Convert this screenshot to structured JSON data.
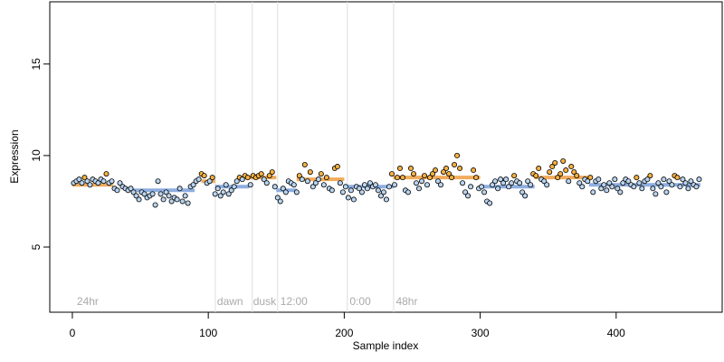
{
  "chart_data": {
    "type": "scatter",
    "x_label": "Sample index",
    "y_label": "Expression",
    "xlim": [
      -16.6,
      478
    ],
    "ylim": [
      1.44,
      18.4
    ],
    "xticks": [
      0,
      100,
      200,
      300,
      400
    ],
    "yticks": [
      5,
      10,
      15
    ],
    "vlines": [
      105.2,
      132.4,
      151,
      202.3,
      236.3
    ],
    "vline_color": "#dddddd",
    "annotations": [
      {
        "x": 3.3,
        "y": 2.03,
        "label": "24hr"
      },
      {
        "x": 106.5,
        "y": 2.03,
        "label": "dawn"
      },
      {
        "x": 133,
        "y": 2.03,
        "label": "dusk"
      },
      {
        "x": 153,
        "y": 2.03,
        "label": "12:00"
      },
      {
        "x": 204,
        "y": 2.03,
        "label": "0:00"
      },
      {
        "x": 238,
        "y": 2.03,
        "label": "48hr"
      }
    ],
    "segments": [
      {
        "x0": 0,
        "x1": 30,
        "y": 8.4,
        "color": "#f0ac5c"
      },
      {
        "x0": 45,
        "x1": 90,
        "y": 8.1,
        "color": "#8eaee0"
      },
      {
        "x0": 95,
        "x1": 105,
        "y": 8.6,
        "color": "#f0ac5c"
      },
      {
        "x0": 105,
        "x1": 130,
        "y": 8.3,
        "color": "#8eaee0"
      },
      {
        "x0": 130,
        "x1": 150,
        "y": 8.8,
        "color": "#f0ac5c"
      },
      {
        "x0": 150,
        "x1": 165,
        "y": 8.1,
        "color": "#8eaee0"
      },
      {
        "x0": 165,
        "x1": 200,
        "y": 8.7,
        "color": "#f0ac5c"
      },
      {
        "x0": 200,
        "x1": 236,
        "y": 8.3,
        "color": "#8eaee0"
      },
      {
        "x0": 236,
        "x1": 300,
        "y": 8.8,
        "color": "#f0ac5c"
      },
      {
        "x0": 300,
        "x1": 340,
        "y": 8.3,
        "color": "#8eaee0"
      },
      {
        "x0": 340,
        "x1": 380,
        "y": 8.8,
        "color": "#f0ac5c"
      },
      {
        "x0": 380,
        "x1": 462,
        "y": 8.4,
        "color": "#8eaee0"
      }
    ],
    "series": [
      {
        "color": "#f5b041",
        "x": [
          9,
          25,
          95,
          97,
          103,
          123,
          127,
          129,
          133,
          135,
          137,
          139,
          145,
          147,
          167,
          171,
          175,
          183,
          187,
          193,
          195,
          235,
          239,
          241,
          243,
          249,
          251,
          259,
          263,
          265,
          267,
          273,
          275,
          277,
          279,
          281,
          283,
          285,
          295,
          297,
          325,
          339,
          341,
          343,
          351,
          353,
          355,
          357,
          359,
          361,
          363,
          367,
          369,
          371,
          381,
          415,
          425,
          443,
          445
        ],
        "values": [
          8.8,
          9.0,
          9.0,
          8.9,
          8.8,
          8.8,
          8.9,
          8.8,
          8.9,
          8.8,
          8.9,
          9.0,
          8.9,
          9.1,
          8.9,
          9.5,
          9.1,
          9.0,
          8.8,
          9.3,
          9.4,
          9.0,
          8.8,
          9.3,
          8.8,
          9.3,
          9.0,
          8.9,
          8.8,
          9.0,
          9.2,
          9.1,
          9.3,
          9.0,
          8.8,
          9.5,
          10.0,
          9.3,
          9.2,
          8.8,
          8.9,
          9.0,
          8.9,
          9.3,
          9.1,
          9.4,
          9.6,
          8.8,
          9.0,
          9.7,
          9.2,
          9.4,
          9.1,
          8.9,
          8.8,
          8.8,
          8.9,
          8.9,
          8.8
        ]
      },
      {
        "color": "#b8d4f0",
        "x": [
          1,
          3,
          5,
          7,
          11,
          13,
          15,
          17,
          19,
          21,
          23,
          27,
          29,
          31,
          33,
          35,
          37,
          39,
          41,
          43,
          45,
          47,
          49,
          51,
          53,
          55,
          57,
          59,
          61,
          63,
          65,
          67,
          69,
          71,
          73,
          75,
          77,
          79,
          81,
          83,
          85,
          87,
          89,
          91,
          93,
          99,
          101,
          105,
          107,
          109,
          111,
          113,
          115,
          117,
          119,
          121,
          125,
          131,
          141,
          143,
          149,
          151,
          153,
          155,
          157,
          159,
          161,
          163,
          165,
          169,
          173,
          177,
          179,
          181,
          185,
          189,
          191,
          197,
          199,
          201,
          203,
          205,
          207,
          209,
          211,
          213,
          215,
          217,
          219,
          221,
          223,
          225,
          227,
          229,
          231,
          233,
          237,
          245,
          247,
          253,
          255,
          257,
          261,
          269,
          271,
          287,
          289,
          291,
          293,
          299,
          301,
          303,
          305,
          307,
          309,
          311,
          313,
          315,
          317,
          319,
          321,
          323,
          327,
          329,
          331,
          333,
          335,
          337,
          345,
          347,
          349,
          365,
          373,
          375,
          377,
          379,
          383,
          385,
          387,
          389,
          391,
          393,
          395,
          397,
          399,
          401,
          403,
          405,
          407,
          409,
          411,
          413,
          417,
          419,
          421,
          423,
          427,
          429,
          431,
          433,
          435,
          437,
          439,
          441,
          447,
          449,
          451,
          453,
          455,
          457,
          459,
          461
        ],
        "values": [
          8.5,
          8.6,
          8.7,
          8.5,
          8.6,
          8.4,
          8.7,
          8.6,
          8.5,
          8.7,
          8.6,
          8.5,
          8.6,
          8.2,
          8.1,
          8.5,
          8.3,
          8.2,
          8.1,
          8.2,
          8.0,
          7.8,
          7.6,
          8.0,
          7.9,
          7.7,
          7.8,
          7.9,
          7.3,
          8.6,
          7.9,
          7.6,
          8.0,
          7.8,
          7.5,
          7.7,
          7.6,
          8.2,
          7.5,
          7.8,
          7.4,
          8.3,
          8.4,
          8.6,
          8.7,
          8.5,
          8.6,
          7.9,
          8.2,
          7.8,
          8.0,
          8.4,
          7.9,
          8.1,
          8.3,
          8.6,
          8.7,
          8.4,
          8.7,
          8.5,
          8.3,
          7.7,
          7.5,
          8.2,
          8.0,
          8.6,
          8.5,
          8.4,
          8.0,
          8.7,
          8.6,
          8.3,
          8.5,
          8.7,
          8.4,
          8.2,
          8.1,
          8.5,
          8.0,
          8.3,
          7.7,
          8.1,
          7.6,
          8.3,
          8.2,
          8.0,
          8.4,
          8.2,
          8.5,
          8.3,
          8.4,
          8.1,
          7.8,
          8.0,
          7.6,
          8.3,
          8.4,
          8.1,
          8.0,
          8.5,
          8.2,
          8.6,
          8.4,
          8.6,
          8.4,
          8.5,
          8.0,
          7.8,
          8.3,
          8.2,
          8.3,
          8.0,
          7.5,
          7.4,
          8.4,
          8.6,
          8.2,
          8.7,
          8.5,
          8.7,
          8.3,
          8.5,
          8.6,
          8.5,
          8.0,
          7.8,
          8.6,
          8.4,
          8.7,
          8.6,
          8.4,
          8.6,
          8.5,
          8.3,
          8.7,
          8.6,
          8.0,
          8.6,
          8.7,
          8.2,
          8.4,
          8.1,
          8.5,
          8.3,
          8.7,
          8.2,
          8.0,
          8.5,
          8.7,
          8.6,
          8.4,
          8.3,
          8.5,
          8.2,
          8.6,
          8.7,
          8.2,
          7.9,
          8.5,
          8.3,
          8.7,
          8.0,
          8.6,
          8.4,
          8.3,
          8.7,
          8.5,
          8.2,
          8.6,
          8.4,
          8.3,
          8.7
        ]
      }
    ]
  }
}
